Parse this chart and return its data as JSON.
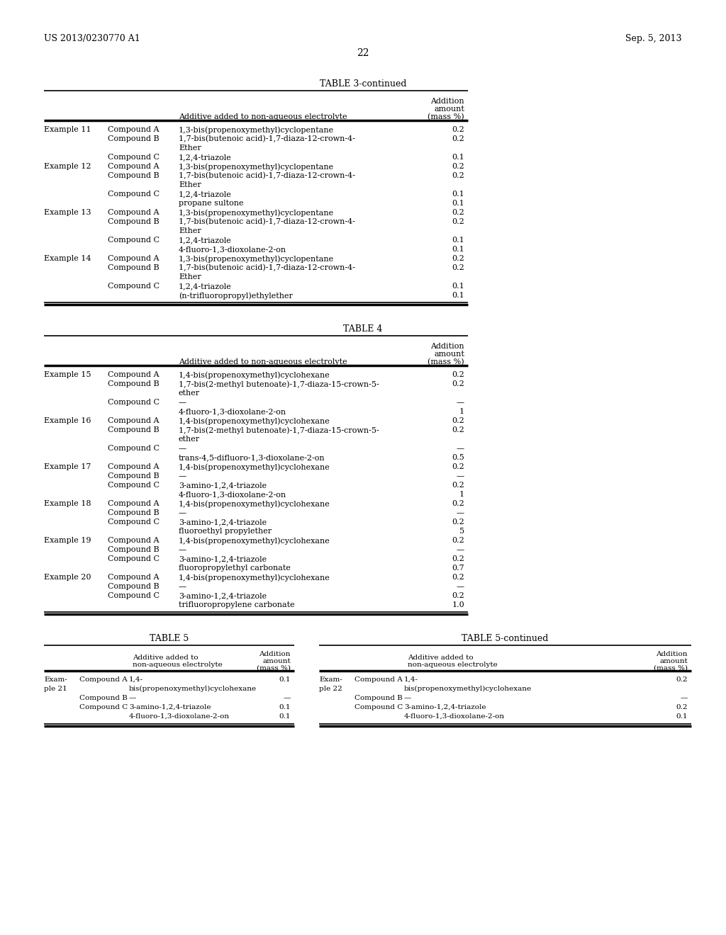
{
  "header_left": "US 2013/0230770 A1",
  "header_right": "Sep. 5, 2013",
  "page_number": "22",
  "background_color": "#ffffff",
  "text_color": "#000000",
  "table3_title": "TABLE 3-continued",
  "table3_rows": [
    [
      "Example 11",
      "Compound A",
      "1,3-bis(propenoxymethyl)cyclopentane",
      "0.2"
    ],
    [
      "",
      "Compound B",
      "1,7-bis(butenoic acid)-1,7-diaza-12-crown-4-",
      "0.2"
    ],
    [
      "",
      "",
      "Ether",
      ""
    ],
    [
      "",
      "Compound C",
      "1,2,4-triazole",
      "0.1"
    ],
    [
      "Example 12",
      "Compound A",
      "1,3-bis(propenoxymethyl)cyclopentane",
      "0.2"
    ],
    [
      "",
      "Compound B",
      "1,7-bis(butenoic acid)-1,7-diaza-12-crown-4-",
      "0.2"
    ],
    [
      "",
      "",
      "Ether",
      ""
    ],
    [
      "",
      "Compound C",
      "1,2,4-triazole",
      "0.1"
    ],
    [
      "",
      "",
      "propane sultone",
      "0.1"
    ],
    [
      "Example 13",
      "Compound A",
      "1,3-bis(propenoxymethyl)cyclopentane",
      "0.2"
    ],
    [
      "",
      "Compound B",
      "1,7-bis(butenoic acid)-1,7-diaza-12-crown-4-",
      "0.2"
    ],
    [
      "",
      "",
      "Ether",
      ""
    ],
    [
      "",
      "Compound C",
      "1,2,4-triazole",
      "0.1"
    ],
    [
      "",
      "",
      "4-fluoro-1,3-dioxolane-2-on",
      "0.1"
    ],
    [
      "Example 14",
      "Compound A",
      "1,3-bis(propenoxymethyl)cyclopentane",
      "0.2"
    ],
    [
      "",
      "Compound B",
      "1,7-bis(butenoic acid)-1,7-diaza-12-crown-4-",
      "0.2"
    ],
    [
      "",
      "",
      "Ether",
      ""
    ],
    [
      "",
      "Compound C",
      "1,2,4-triazole",
      "0.1"
    ],
    [
      "",
      "",
      "(n-trifluoropropyl)ethylether",
      "0.1"
    ]
  ],
  "table4_title": "TABLE 4",
  "table4_rows": [
    [
      "Example 15",
      "Compound A",
      "1,4-bis(propenoxymethyl)cyclohexane",
      "0.2"
    ],
    [
      "",
      "Compound B",
      "1,7-bis(2-methyl butenoate)-1,7-diaza-15-crown-5-",
      "0.2"
    ],
    [
      "",
      "",
      "ether",
      ""
    ],
    [
      "",
      "Compound C",
      "—",
      "—"
    ],
    [
      "",
      "",
      "4-fluoro-1,3-dioxolane-2-on",
      "1"
    ],
    [
      "Example 16",
      "Compound A",
      "1,4-bis(propenoxymethyl)cyclohexane",
      "0.2"
    ],
    [
      "",
      "Compound B",
      "1,7-bis(2-methyl butenoate)-1,7-diaza-15-crown-5-",
      "0.2"
    ],
    [
      "",
      "",
      "ether",
      ""
    ],
    [
      "",
      "Compound C",
      "—",
      "—"
    ],
    [
      "",
      "",
      "trans-4,5-difluoro-1,3-dioxolane-2-on",
      "0.5"
    ],
    [
      "Example 17",
      "Compound A",
      "1,4-bis(propenoxymethyl)cyclohexane",
      "0.2"
    ],
    [
      "",
      "Compound B",
      "—",
      "—"
    ],
    [
      "",
      "Compound C",
      "3-amino-1,2,4-triazole",
      "0.2"
    ],
    [
      "",
      "",
      "4-fluoro-1,3-dioxolane-2-on",
      "1"
    ],
    [
      "Example 18",
      "Compound A",
      "1,4-bis(propenoxymethyl)cyclohexane",
      "0.2"
    ],
    [
      "",
      "Compound B",
      "—",
      "—"
    ],
    [
      "",
      "Compound C",
      "3-amino-1,2,4-triazole",
      "0.2"
    ],
    [
      "",
      "",
      "fluoroethyl propylether",
      "5"
    ],
    [
      "Example 19",
      "Compound A",
      "1,4-bis(propenoxymethyl)cyclohexane",
      "0.2"
    ],
    [
      "",
      "Compound B",
      "—",
      "—"
    ],
    [
      "",
      "Compound C",
      "3-amino-1,2,4-triazole",
      "0.2"
    ],
    [
      "",
      "",
      "fluoropropylethyl carbonate",
      "0.7"
    ],
    [
      "Example 20",
      "Compound A",
      "1,4-bis(propenoxymethyl)cyclohexane",
      "0.2"
    ],
    [
      "",
      "Compound B",
      "—",
      "—"
    ],
    [
      "",
      "Compound C",
      "3-amino-1,2,4-triazole",
      "0.2"
    ],
    [
      "",
      "",
      "trifluoropropylene carbonate",
      "1.0"
    ]
  ],
  "table5_title": "TABLE 5",
  "table5cont_title": "TABLE 5-continued",
  "table5_rows": [
    [
      "Exam-",
      "Compound A",
      "1,4-",
      "0.1"
    ],
    [
      "ple 21",
      "",
      "bis(propenoxymethyl)cyclohexane",
      ""
    ],
    [
      "",
      "Compound B",
      "—",
      "—"
    ],
    [
      "",
      "Compound C",
      "3-amino-1,2,4-triazole",
      "0.1"
    ],
    [
      "",
      "",
      "4-fluoro-1,3-dioxolane-2-on",
      "0.1"
    ]
  ],
  "table5cont_rows": [
    [
      "Exam-",
      "Compound A",
      "1,4-",
      "0.2"
    ],
    [
      "ple 22",
      "",
      "bis(propenoxymethyl)cyclohexane",
      ""
    ],
    [
      "",
      "Compound B",
      "—",
      "—"
    ],
    [
      "",
      "Compound C",
      "3-amino-1,2,4-triazole",
      "0.2"
    ],
    [
      "",
      "",
      "4-fluoro-1,3-dioxolane-2-on",
      "0.1"
    ]
  ]
}
